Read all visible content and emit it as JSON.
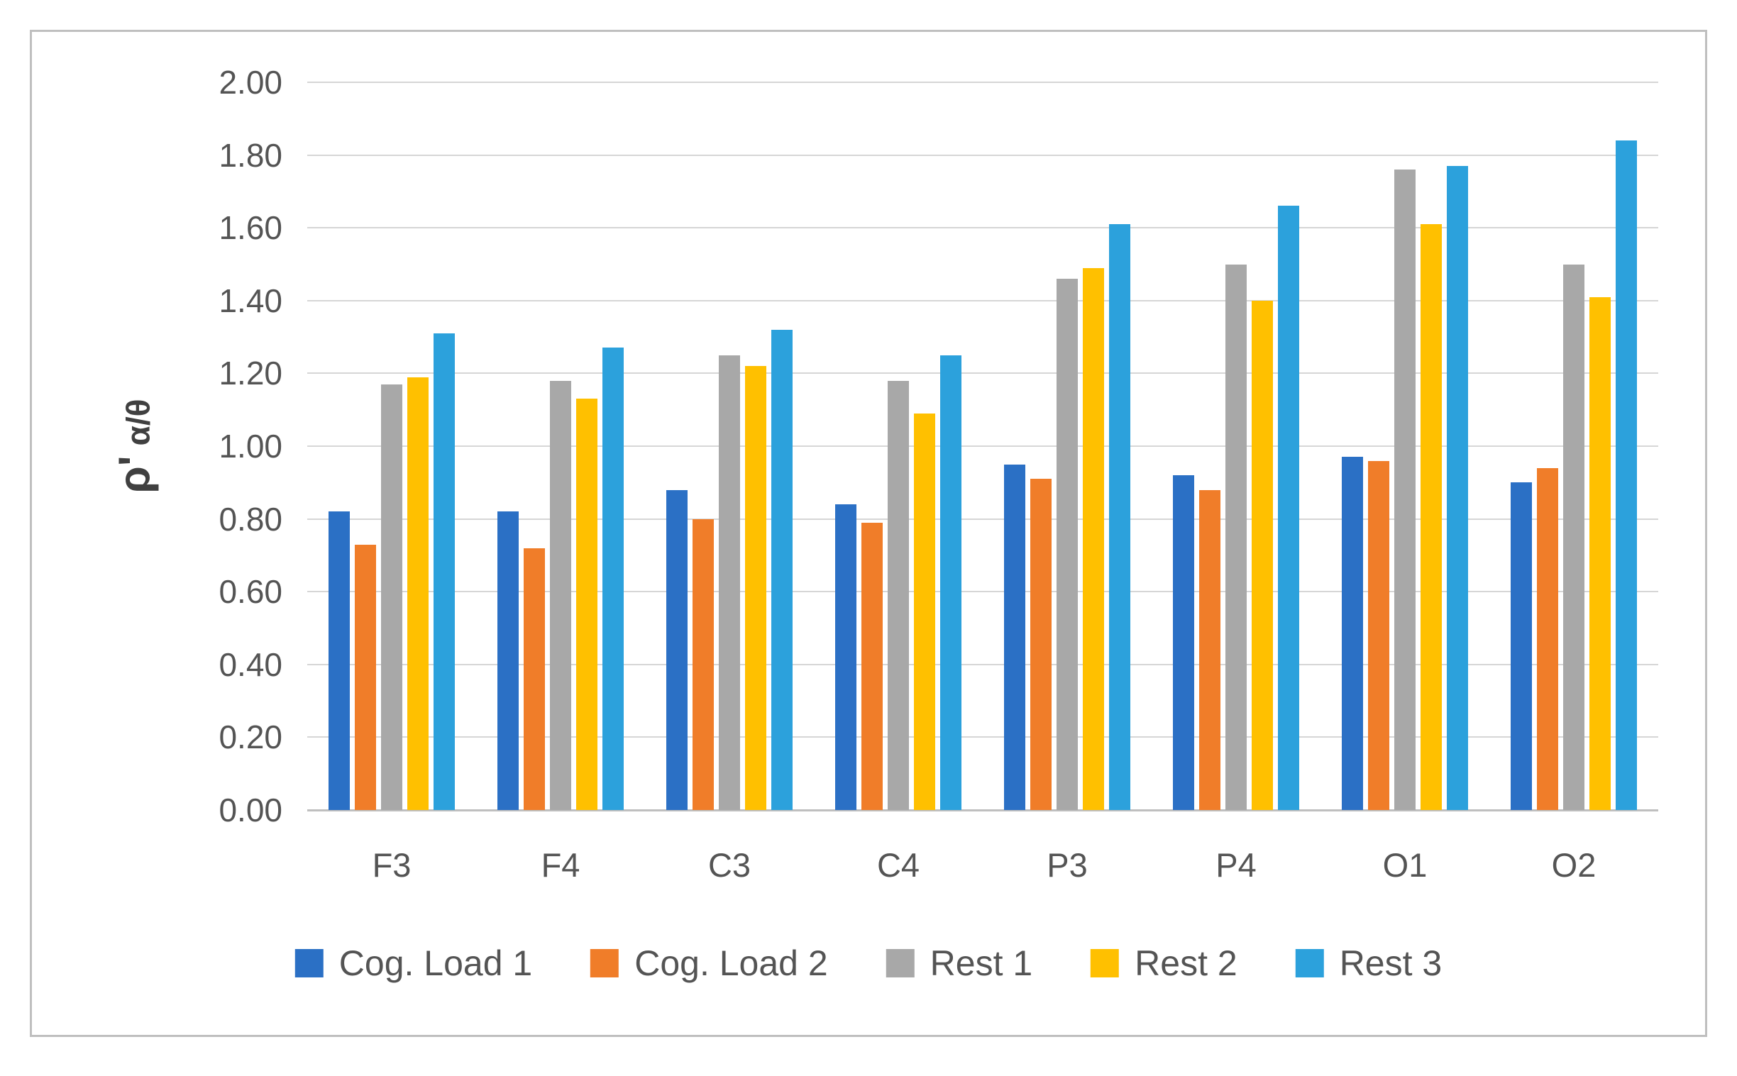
{
  "chart_data": {
    "type": "bar",
    "title": "",
    "xlabel": "",
    "ylabel": "ρ' α/θ",
    "ylabel_parts": [
      "ρ'",
      "α/θ"
    ],
    "ylim": [
      0.0,
      2.0
    ],
    "ytick_step": 0.2,
    "y_ticks": [
      "0.00",
      "0.20",
      "0.40",
      "0.60",
      "0.80",
      "1.00",
      "1.20",
      "1.40",
      "1.60",
      "1.80",
      "2.00"
    ],
    "grid": true,
    "legend_position": "bottom",
    "categories": [
      "F3",
      "F4",
      "C3",
      "C4",
      "P3",
      "P4",
      "O1",
      "O2"
    ],
    "series": [
      {
        "name": "Cog. Load 1",
        "color": "#2B70C5",
        "values": [
          0.82,
          0.82,
          0.88,
          0.84,
          0.95,
          0.92,
          0.97,
          0.9
        ]
      },
      {
        "name": "Cog. Load 2",
        "color": "#F07D29",
        "values": [
          0.73,
          0.72,
          0.8,
          0.79,
          0.91,
          0.88,
          0.96,
          0.94
        ]
      },
      {
        "name": "Rest 1",
        "color": "#A8A8A8",
        "values": [
          1.17,
          1.18,
          1.25,
          1.18,
          1.46,
          1.5,
          1.76,
          1.5
        ]
      },
      {
        "name": "Rest 2",
        "color": "#FFC000",
        "values": [
          1.19,
          1.13,
          1.22,
          1.09,
          1.49,
          1.4,
          1.61,
          1.41
        ]
      },
      {
        "name": "Rest 3",
        "color": "#2CA1DC",
        "values": [
          1.31,
          1.27,
          1.32,
          1.25,
          1.61,
          1.66,
          1.77,
          1.84
        ]
      }
    ]
  },
  "colors": {
    "background": "#FFFFFF",
    "border": "#BFBFBF",
    "gridline": "#D6D6D6",
    "axis_line": "#BFBFBF",
    "text": "#545454"
  }
}
